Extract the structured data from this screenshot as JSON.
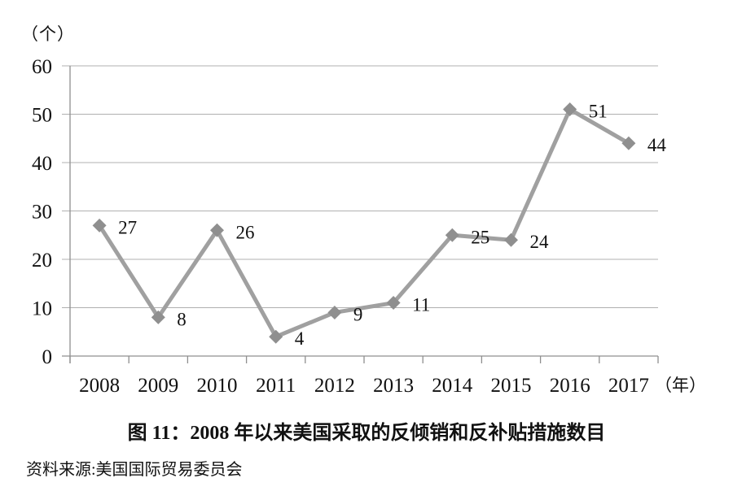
{
  "page": {
    "y_axis_unit": "（个）",
    "x_axis_unit": "（年）",
    "caption": "图 11：2008 年以来美国采取的反倾销和反补贴措施数目",
    "source": "资料来源:美国国际贸易委员会"
  },
  "chart_data": {
    "type": "line",
    "title": "图 11：2008 年以来美国采取的反倾销和反补贴措施数目",
    "categories": [
      "2008",
      "2009",
      "2010",
      "2011",
      "2012",
      "2013",
      "2014",
      "2015",
      "2016",
      "2017"
    ],
    "values": [
      27,
      8,
      26,
      4,
      9,
      11,
      25,
      24,
      51,
      44
    ],
    "xlabel": "（年）",
    "ylabel": "（个）",
    "ylim": [
      0,
      60
    ],
    "ytick_step": 10,
    "yticks": [
      0,
      10,
      20,
      30,
      40,
      50,
      60
    ],
    "grid": true,
    "legend": "none",
    "marker": "diamond",
    "data_labels": true,
    "colors": {
      "line": "#a0a0a0",
      "marker": "#8f8f8f",
      "gridline": "#b0b0b0",
      "axis": "#8f8f8f",
      "text": "#111111"
    }
  }
}
